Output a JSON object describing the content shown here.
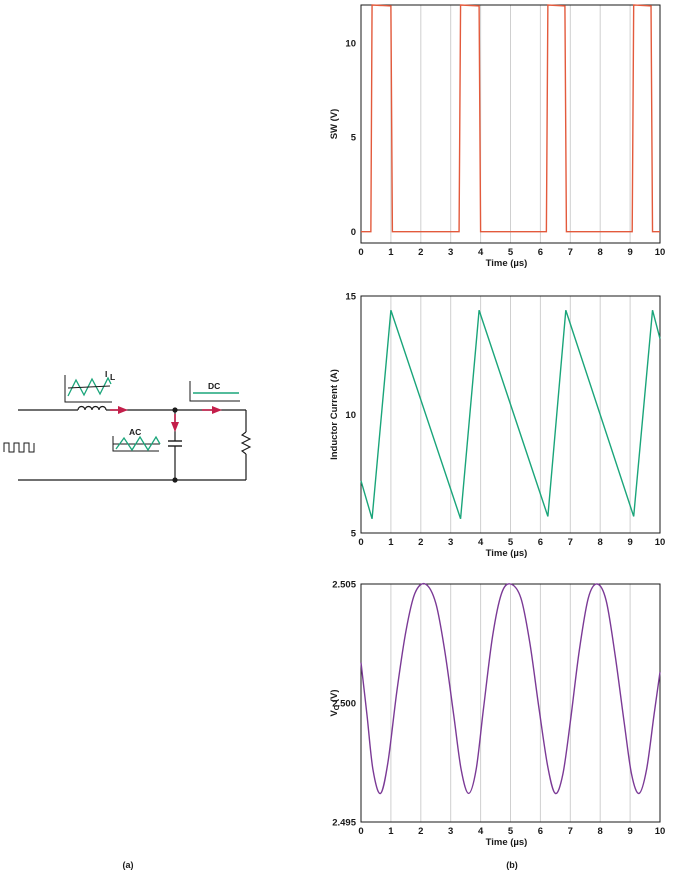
{
  "schematic": {
    "label_il": "I",
    "label_il_sub": "L",
    "label_ac": "AC",
    "label_dc": "DC",
    "wire_color": "#1a1a1a",
    "arrow_color": "#c41e4a",
    "ripple_color": "#1aa57a"
  },
  "captions": {
    "a": "(a)",
    "b": "(b)"
  },
  "chart_data": [
    {
      "type": "line",
      "xlabel": "Time (µs)",
      "ylabel": "SW (V)",
      "xlim": [
        0,
        10
      ],
      "ylim": [
        -0.6,
        12
      ],
      "xticks": [
        0,
        1,
        2,
        3,
        4,
        5,
        6,
        7,
        8,
        9,
        10
      ],
      "yticks": [
        0,
        5,
        10
      ],
      "ytick_labels": [
        "0",
        "5",
        "10"
      ],
      "grid": "vertical",
      "color": "#e35a3c",
      "series": [
        {
          "x": [
            0,
            0.33,
            0.37,
            1.0,
            1.05,
            3.28,
            3.33,
            3.95,
            4.0,
            6.2,
            6.25,
            6.82,
            6.87,
            9.07,
            9.12,
            9.7,
            9.75,
            10
          ],
          "y": [
            0,
            0,
            12,
            11.95,
            0,
            0,
            12,
            11.95,
            0,
            0,
            12,
            11.95,
            0,
            0,
            12,
            11.95,
            0,
            0
          ]
        }
      ]
    },
    {
      "type": "line",
      "xlabel": "Time (µs)",
      "ylabel": "Inductor Current (A)",
      "xlim": [
        0,
        10
      ],
      "ylim": [
        5,
        15
      ],
      "xticks": [
        0,
        1,
        2,
        3,
        4,
        5,
        6,
        7,
        8,
        9,
        10
      ],
      "yticks": [
        5,
        10,
        15
      ],
      "ytick_labels": [
        "5",
        "10",
        "15"
      ],
      "grid": "vertical",
      "color": "#1aa57a",
      "series": [
        {
          "x": [
            0,
            0.37,
            1.0,
            3.33,
            3.95,
            6.25,
            6.85,
            9.12,
            9.75,
            10
          ],
          "y": [
            7.2,
            5.6,
            14.4,
            5.6,
            14.4,
            5.7,
            14.4,
            5.7,
            14.4,
            13.2
          ]
        }
      ]
    },
    {
      "type": "line",
      "xlabel": "Time (µs)",
      "ylabel": "V",
      "ylabel_sub": "O",
      "ylabel_suffix": " (V)",
      "xlim": [
        0,
        10
      ],
      "ylim": [
        2.495,
        2.505
      ],
      "xticks": [
        0,
        1,
        2,
        3,
        4,
        5,
        6,
        7,
        8,
        9,
        10
      ],
      "yticks": [
        2.495,
        2.5,
        2.505
      ],
      "ytick_labels": [
        "2.495",
        "2.500",
        "2.505"
      ],
      "grid": "vertical",
      "color": "#7b3a96",
      "series": [
        {
          "x": [
            0,
            0.2,
            0.4,
            0.65,
            0.9,
            1.2,
            1.5,
            1.8,
            2.15,
            2.5,
            2.8,
            3.1,
            3.35,
            3.6,
            3.85,
            4.1,
            4.4,
            4.7,
            5.0,
            5.35,
            5.65,
            5.95,
            6.25,
            6.5,
            6.75,
            7.0,
            7.3,
            7.6,
            7.9,
            8.2,
            8.5,
            8.8,
            9.05,
            9.3,
            9.55,
            9.8,
            10.0
          ],
          "y": [
            2.5017,
            2.4995,
            2.4972,
            2.4962,
            2.4975,
            2.5005,
            2.503,
            2.5046,
            2.505,
            2.5042,
            2.5022,
            2.4995,
            2.4972,
            2.4962,
            2.4972,
            2.4998,
            2.5028,
            2.5046,
            2.505,
            2.5044,
            2.5025,
            2.4998,
            2.4973,
            2.4962,
            2.497,
            2.4992,
            2.5022,
            2.5044,
            2.505,
            2.5043,
            2.502,
            2.4992,
            2.497,
            2.4962,
            2.4972,
            2.4995,
            2.5013
          ]
        }
      ]
    }
  ]
}
